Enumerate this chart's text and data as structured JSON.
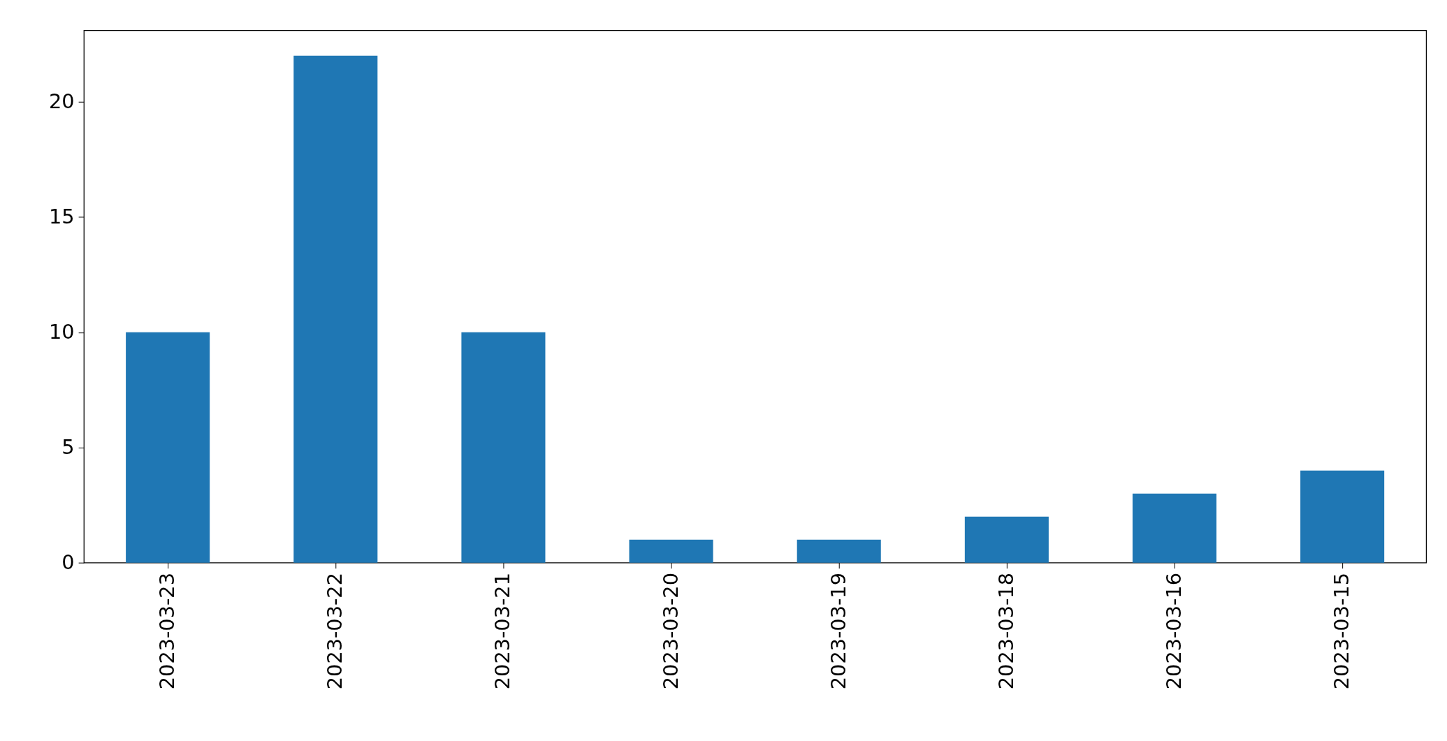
{
  "chart_data": {
    "type": "bar",
    "categories": [
      "2023-03-23",
      "2023-03-22",
      "2023-03-21",
      "2023-03-20",
      "2023-03-19",
      "2023-03-18",
      "2023-03-16",
      "2023-03-15"
    ],
    "values": [
      10,
      22,
      10,
      1,
      1,
      2,
      3,
      4
    ],
    "color": "#1f77b4",
    "ylim": [
      0,
      23.1
    ],
    "yticks": [
      0,
      5,
      10,
      15,
      20
    ],
    "grid": false
  }
}
